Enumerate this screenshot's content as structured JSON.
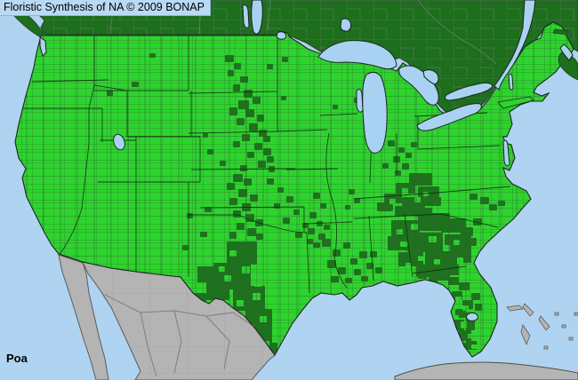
{
  "header": {
    "title": "Floristic Synthesis of NA © 2009 BONAP"
  },
  "footer": {
    "taxon": "Poa"
  },
  "colors": {
    "ocean": "#a6cdee",
    "ocean_dither": "#bcdcf6",
    "lake": "#a9d2f2",
    "us_present_bright": "#2fd32f",
    "county_dark": "#1e721e",
    "canada": "#1d6e1d",
    "mexico": "#b4b4b4",
    "island_gray": "#b4b4b4",
    "outline": "#1c281c",
    "gray_border": "#6f806f",
    "header_bg": "#b9daf5",
    "text": "#000000"
  },
  "map": {
    "dark_patches": [
      [
        253,
        62,
        10,
        8
      ],
      [
        263,
        71,
        8,
        7
      ],
      [
        256,
        79,
        7,
        7
      ],
      [
        270,
        86,
        9,
        7
      ],
      [
        262,
        95,
        8,
        8
      ],
      [
        274,
        101,
        10,
        9
      ],
      [
        284,
        109,
        9,
        8
      ],
      [
        268,
        113,
        12,
        10
      ],
      [
        258,
        121,
        9,
        9
      ],
      [
        276,
        123,
        10,
        9
      ],
      [
        289,
        129,
        8,
        8
      ],
      [
        266,
        133,
        9,
        8
      ],
      [
        280,
        139,
        10,
        9
      ],
      [
        291,
        146,
        9,
        8
      ],
      [
        272,
        151,
        9,
        8
      ],
      [
        296,
        153,
        8,
        7
      ],
      [
        262,
        159,
        8,
        7
      ],
      [
        286,
        161,
        9,
        8
      ],
      [
        296,
        167,
        9,
        8
      ],
      [
        278,
        171,
        8,
        7
      ],
      [
        300,
        176,
        8,
        7
      ],
      [
        290,
        181,
        9,
        8
      ],
      [
        270,
        186,
        8,
        7
      ],
      [
        302,
        187,
        7,
        7
      ],
      [
        262,
        196,
        11,
        9
      ],
      [
        274,
        201,
        9,
        8
      ],
      [
        255,
        206,
        9,
        8
      ],
      [
        268,
        213,
        10,
        9
      ],
      [
        281,
        219,
        9,
        8
      ],
      [
        258,
        223,
        9,
        8
      ],
      [
        272,
        229,
        10,
        9
      ],
      [
        262,
        237,
        9,
        8
      ],
      [
        276,
        241,
        10,
        9
      ],
      [
        287,
        247,
        9,
        8
      ],
      [
        266,
        251,
        9,
        8
      ],
      [
        278,
        257,
        10,
        9
      ],
      [
        258,
        261,
        8,
        8
      ],
      [
        288,
        263,
        8,
        7
      ],
      [
        230,
        233,
        8,
        6
      ],
      [
        300,
        201,
        8,
        7
      ],
      [
        312,
        211,
        7,
        6
      ],
      [
        322,
        221,
        8,
        7
      ],
      [
        308,
        229,
        7,
        6
      ],
      [
        330,
        236,
        7,
        6
      ],
      [
        318,
        245,
        8,
        7
      ],
      [
        340,
        251,
        7,
        6
      ],
      [
        332,
        261,
        8,
        7
      ],
      [
        345,
        269,
        7,
        6
      ],
      [
        352,
        217,
        8,
        7
      ],
      [
        360,
        229,
        7,
        6
      ],
      [
        348,
        239,
        8,
        7
      ],
      [
        356,
        249,
        7,
        6
      ],
      [
        392,
        213,
        7,
        6
      ],
      [
        398,
        223,
        7,
        6
      ],
      [
        388,
        231,
        6,
        5
      ],
      [
        346,
        257,
        8,
        7
      ],
      [
        358,
        263,
        8,
        7
      ],
      [
        352,
        273,
        8,
        6
      ],
      [
        364,
        253,
        7,
        6
      ],
      [
        362,
        269,
        10,
        9
      ],
      [
        374,
        281,
        9,
        8
      ],
      [
        386,
        273,
        8,
        7
      ],
      [
        368,
        293,
        10,
        9
      ],
      [
        380,
        301,
        9,
        8
      ],
      [
        394,
        291,
        8,
        7
      ],
      [
        404,
        283,
        9,
        8
      ],
      [
        398,
        303,
        8,
        7
      ],
      [
        412,
        296,
        8,
        7
      ],
      [
        372,
        311,
        9,
        7
      ],
      [
        388,
        313,
        8,
        6
      ],
      [
        406,
        311,
        8,
        6
      ],
      [
        416,
        283,
        8,
        7
      ],
      [
        422,
        301,
        8,
        7
      ],
      [
        255,
        272,
        34,
        26
      ],
      [
        240,
        296,
        42,
        30
      ],
      [
        262,
        322,
        36,
        28
      ],
      [
        276,
        348,
        30,
        26
      ],
      [
        284,
        368,
        22,
        20
      ],
      [
        296,
        386,
        16,
        12
      ],
      [
        222,
        300,
        22,
        18
      ],
      [
        232,
        318,
        26,
        20
      ],
      [
        216,
        330,
        16,
        12
      ],
      [
        148,
        92,
        8,
        6
      ],
      [
        120,
        102,
        7,
        6
      ],
      [
        168,
        60,
        7,
        5
      ],
      [
        233,
        168,
        7,
        6
      ],
      [
        247,
        181,
        7,
        6
      ],
      [
        228,
        150,
        6,
        5
      ],
      [
        210,
        240,
        7,
        6
      ],
      [
        225,
        261,
        8,
        6
      ],
      [
        205,
        276,
        7,
        6
      ],
      [
        300,
        72,
        7,
        6
      ],
      [
        317,
        64,
        7,
        6
      ],
      [
        398,
        110,
        7,
        6
      ],
      [
        408,
        120,
        6,
        5
      ],
      [
        316,
        108,
        6,
        5
      ],
      [
        374,
        118,
        6,
        5
      ],
      [
        436,
        72,
        8,
        5
      ],
      [
        448,
        78,
        7,
        5
      ],
      [
        456,
        84,
        6,
        5
      ],
      [
        436,
        158,
        8,
        7
      ],
      [
        448,
        166,
        7,
        6
      ],
      [
        442,
        176,
        8,
        7
      ],
      [
        456,
        172,
        7,
        6
      ],
      [
        430,
        184,
        7,
        6
      ],
      [
        452,
        184,
        8,
        7
      ],
      [
        444,
        192,
        7,
        6
      ],
      [
        462,
        160,
        7,
        6
      ],
      [
        460,
        195,
        26,
        14
      ],
      [
        445,
        206,
        22,
        12
      ],
      [
        470,
        210,
        24,
        12
      ],
      [
        432,
        218,
        20,
        11
      ],
      [
        452,
        222,
        26,
        12
      ],
      [
        478,
        222,
        18,
        10
      ],
      [
        424,
        228,
        18,
        10
      ],
      [
        444,
        232,
        22,
        11
      ],
      [
        466,
        234,
        20,
        10
      ],
      [
        470,
        240,
        36,
        20
      ],
      [
        440,
        248,
        32,
        18
      ],
      [
        496,
        246,
        28,
        16
      ],
      [
        458,
        262,
        40,
        22
      ],
      [
        500,
        264,
        30,
        18
      ],
      [
        436,
        266,
        24,
        16
      ],
      [
        478,
        282,
        36,
        18
      ],
      [
        448,
        284,
        28,
        16
      ],
      [
        508,
        282,
        22,
        14
      ],
      [
        468,
        298,
        30,
        14
      ],
      [
        494,
        298,
        22,
        12
      ],
      [
        518,
        256,
        14,
        10
      ],
      [
        524,
        268,
        12,
        9
      ],
      [
        532,
        246,
        10,
        8
      ],
      [
        540,
        222,
        10,
        8
      ],
      [
        550,
        230,
        9,
        7
      ],
      [
        528,
        218,
        9,
        7
      ],
      [
        560,
        226,
        8,
        6
      ],
      [
        492,
        306,
        14,
        10
      ],
      [
        504,
        312,
        12,
        9
      ],
      [
        482,
        312,
        10,
        8
      ],
      [
        470,
        306,
        10,
        8
      ],
      [
        516,
        318,
        12,
        9
      ],
      [
        508,
        328,
        12,
        10
      ],
      [
        520,
        338,
        12,
        10
      ],
      [
        512,
        348,
        12,
        10
      ],
      [
        524,
        352,
        10,
        20
      ],
      [
        508,
        360,
        14,
        12
      ],
      [
        516,
        372,
        14,
        12
      ],
      [
        524,
        384,
        12,
        10
      ],
      [
        514,
        386,
        10,
        8
      ],
      [
        530,
        330,
        10,
        8
      ],
      [
        534,
        342,
        8,
        8
      ]
    ],
    "bright_speckles": [
      [
        258,
        282,
        8,
        7
      ],
      [
        272,
        300,
        9,
        8
      ],
      [
        252,
        310,
        8,
        7
      ],
      [
        284,
        330,
        9,
        8
      ],
      [
        266,
        338,
        8,
        7
      ],
      [
        292,
        356,
        8,
        7
      ],
      [
        278,
        366,
        8,
        7
      ],
      [
        296,
        384,
        7,
        6
      ],
      [
        246,
        300,
        7,
        6
      ],
      [
        286,
        316,
        8,
        7
      ],
      [
        452,
        212,
        7,
        6
      ],
      [
        466,
        222,
        7,
        6
      ],
      [
        438,
        224,
        7,
        6
      ],
      [
        476,
        216,
        6,
        5
      ],
      [
        462,
        252,
        8,
        7
      ],
      [
        482,
        266,
        9,
        7
      ],
      [
        450,
        272,
        8,
        6
      ],
      [
        498,
        276,
        8,
        7
      ],
      [
        470,
        288,
        8,
        6
      ],
      [
        488,
        292,
        7,
        6
      ],
      [
        510,
        270,
        7,
        6
      ],
      [
        446,
        258,
        7,
        6
      ],
      [
        514,
        290,
        7,
        6
      ],
      [
        456,
        296,
        7,
        6
      ],
      [
        512,
        334,
        7,
        6
      ],
      [
        520,
        344,
        7,
        6
      ],
      [
        510,
        355,
        6,
        5
      ],
      [
        518,
        362,
        7,
        8
      ],
      [
        526,
        376,
        6,
        5
      ],
      [
        530,
        388,
        6,
        5
      ]
    ]
  }
}
